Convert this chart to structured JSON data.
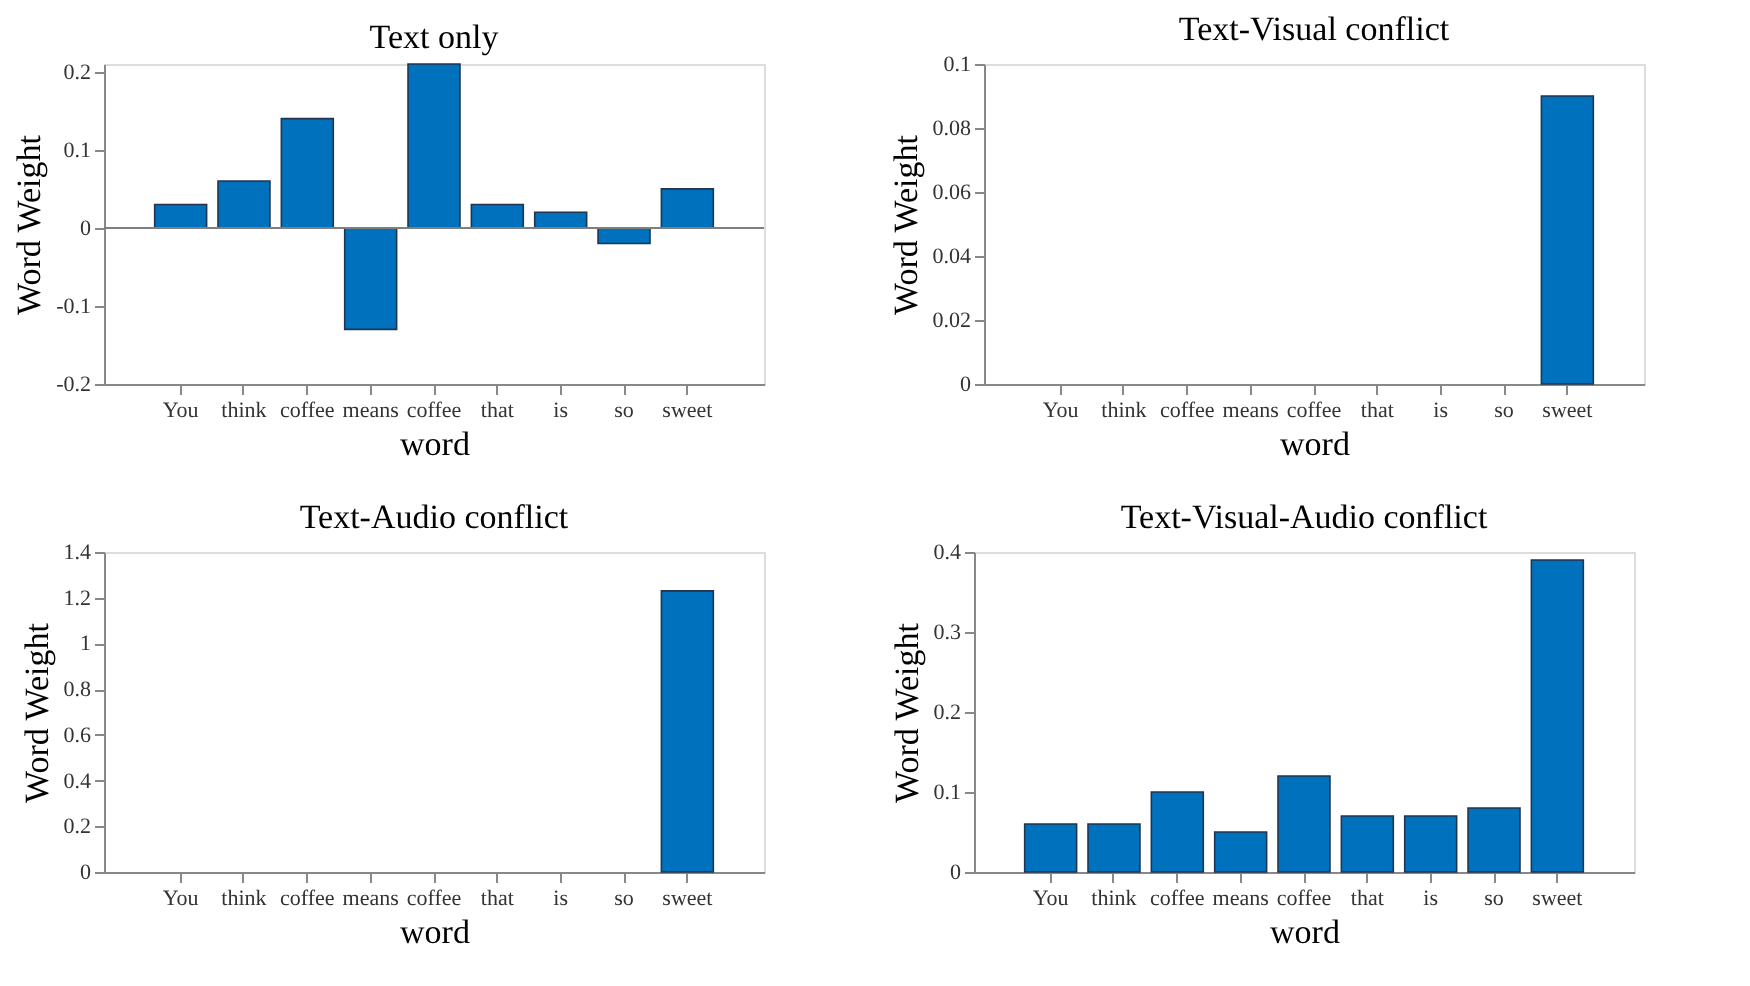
{
  "chart_data": [
    {
      "type": "bar",
      "title": "Text only",
      "xlabel": "word",
      "ylabel": "Word Weight",
      "categories": [
        "You",
        "think",
        "coffee",
        "means",
        "coffee",
        "that",
        "is",
        "so",
        "sweet"
      ],
      "values": [
        0.03,
        0.06,
        0.14,
        -0.13,
        0.21,
        0.03,
        0.02,
        -0.02,
        0.05
      ],
      "color": "#0072bd",
      "ylim": [
        -0.2,
        0.21
      ],
      "yticks": [
        -0.2,
        -0.1,
        0,
        0.1,
        0.2
      ],
      "grid": false,
      "ref_lines": [
        {
          "axis": "y",
          "value": 0,
          "color": "#7f7f7f"
        }
      ]
    },
    {
      "type": "bar",
      "title": "Text-Visual conflict",
      "xlabel": "word",
      "ylabel": "Word Weight",
      "categories": [
        "You",
        "think",
        "coffee",
        "means",
        "coffee",
        "that",
        "is",
        "so",
        "sweet"
      ],
      "values": [
        0,
        0,
        0,
        0,
        0,
        0,
        0,
        0,
        0.09
      ],
      "color": "#0072bd",
      "ylim": [
        0,
        0.1
      ],
      "yticks": [
        0,
        0.02,
        0.04,
        0.06,
        0.08,
        0.1
      ],
      "grid": false
    },
    {
      "type": "bar",
      "title": "Text-Audio conflict",
      "xlabel": "word",
      "ylabel": "Word Weight",
      "categories": [
        "You",
        "think",
        "coffee",
        "means",
        "coffee",
        "that",
        "is",
        "so",
        "sweet"
      ],
      "values": [
        0,
        0,
        0,
        0,
        0,
        0,
        0,
        0,
        1.23
      ],
      "color": "#0072bd",
      "ylim": [
        0,
        1.4
      ],
      "yticks": [
        0,
        0.2,
        0.4,
        0.6,
        0.8,
        1,
        1.2,
        1.4
      ],
      "grid": false
    },
    {
      "type": "bar",
      "title": "Text-Visual-Audio conflict",
      "xlabel": "word",
      "ylabel": "Word Weight",
      "categories": [
        "You",
        "think",
        "coffee",
        "means",
        "coffee",
        "that",
        "is",
        "so",
        "sweet"
      ],
      "values": [
        0.06,
        0.06,
        0.1,
        0.05,
        0.12,
        0.07,
        0.07,
        0.08,
        0.39
      ],
      "color": "#0072bd",
      "ylim": [
        0,
        0.4
      ],
      "yticks": [
        0,
        0.1,
        0.2,
        0.3,
        0.4
      ],
      "grid": false
    }
  ]
}
